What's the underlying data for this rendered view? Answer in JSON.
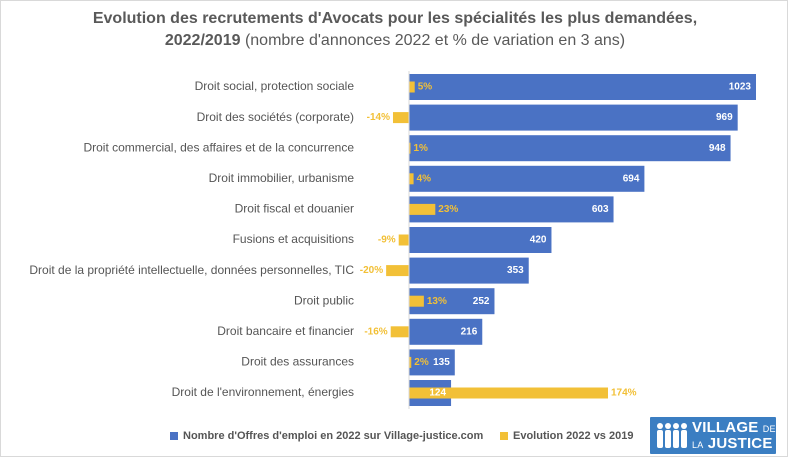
{
  "title": {
    "main_line1": "Evolution des recrutements d'Avocats pour les spécialités les plus demandées,",
    "main_line2": "2022/2019",
    "sub": " (nombre d'annonces 2022 et % de variation en 3 ans)"
  },
  "colors": {
    "offers": "#4a72c4",
    "evolution": "#f2c037",
    "text": "#555555"
  },
  "chart_data": {
    "type": "bar",
    "orientation": "horizontal",
    "categories": [
      "Droit social, protection sociale",
      "Droit des sociétés (corporate)",
      "Droit commercial, des affaires et de la concurrence",
      "Droit immobilier, urbanisme",
      "Droit fiscal et douanier",
      "Fusions et acquisitions",
      "Droit de la propriété intellectuelle, données personnelles, TIC",
      "Droit public",
      "Droit bancaire et financier",
      "Droit des assurances",
      "Droit de l'environnement, énergies"
    ],
    "series": [
      {
        "name": "Nombre d'Offres d'emploi en 2022 sur Village-justice.com",
        "values": [
          1023,
          969,
          948,
          694,
          603,
          420,
          353,
          252,
          216,
          135,
          124
        ],
        "labels": [
          "1023",
          "969",
          "948",
          "694",
          "603",
          "420",
          "353",
          "252",
          "216",
          "135",
          "124"
        ]
      },
      {
        "name": "Evolution 2022 vs 2019",
        "values": [
          5,
          -14,
          1,
          4,
          23,
          -9,
          -20,
          13,
          -16,
          2,
          174
        ],
        "labels": [
          "5%",
          "-14%",
          "1%",
          "4%",
          "23%",
          "-9%",
          "-20%",
          "13%",
          "-16%",
          "2%",
          "174%"
        ]
      }
    ],
    "legend_position": "bottom",
    "grid": false
  },
  "legend": {
    "offers_label": "Nombre d'Offres d'emploi en 2022 sur Village-justice.com",
    "evolution_label": "Evolution 2022 vs 2019"
  },
  "logo": {
    "line1": "VILLAGE",
    "line1_small": "DE",
    "line2_small": "LA",
    "line2": "JUSTICE"
  }
}
